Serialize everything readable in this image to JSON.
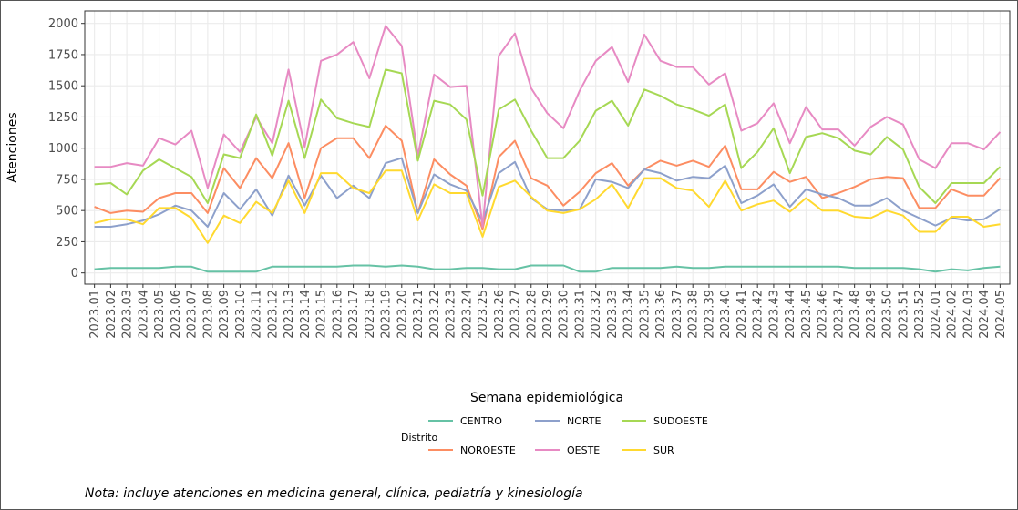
{
  "chart_data": {
    "type": "line",
    "x_label": "Semana epidemiológica",
    "y_label": "Atenciones",
    "legend_title": "Distrito",
    "note": "Nota: incluye atenciones en medicina general, clínica, pediatría y kinesiología",
    "categories": [
      "2023.01",
      "2023.02",
      "2023.03",
      "2023.04",
      "2023.05",
      "2023.06",
      "2023.07",
      "2023.08",
      "2023.09",
      "2023.10",
      "2023.11",
      "2023.12",
      "2023.13",
      "2023.14",
      "2023.15",
      "2023.16",
      "2023.17",
      "2023.18",
      "2023.19",
      "2023.20",
      "2023.21",
      "2023.22",
      "2023.23",
      "2023.24",
      "2023.25",
      "2023.26",
      "2023.27",
      "2023.28",
      "2023.29",
      "2023.30",
      "2023.31",
      "2023.32",
      "2023.33",
      "2023.34",
      "2023.35",
      "2023.36",
      "2023.37",
      "2023.38",
      "2023.39",
      "2023.40",
      "2023.41",
      "2023.42",
      "2023.43",
      "2023.44",
      "2023.45",
      "2023.46",
      "2023.47",
      "2023.48",
      "2023.49",
      "2023.50",
      "2023.51",
      "2023.52",
      "2024.01",
      "2024.02",
      "2024.03",
      "2024.04",
      "2024.05"
    ],
    "ylim": [
      -90,
      2100
    ],
    "yticks": [
      0,
      250,
      500,
      750,
      1000,
      1250,
      1500,
      1750,
      2000
    ],
    "grid": true,
    "series": [
      {
        "name": "CENTRO",
        "color": "#66c2a5",
        "values": [
          30,
          40,
          40,
          40,
          40,
          50,
          50,
          10,
          10,
          10,
          10,
          50,
          50,
          50,
          50,
          50,
          60,
          60,
          50,
          60,
          50,
          30,
          30,
          40,
          40,
          30,
          30,
          60,
          60,
          60,
          10,
          10,
          40,
          40,
          40,
          40,
          50,
          40,
          40,
          50,
          50,
          50,
          50,
          50,
          50,
          50,
          50,
          40,
          40,
          40,
          40,
          30,
          10,
          30,
          20,
          40,
          50
        ]
      },
      {
        "name": "NOROESTE",
        "color": "#fc8d62",
        "values": [
          530,
          480,
          500,
          490,
          600,
          640,
          640,
          480,
          840,
          680,
          920,
          760,
          1040,
          600,
          1000,
          1080,
          1080,
          920,
          1180,
          1060,
          480,
          910,
          790,
          700,
          350,
          930,
          1060,
          760,
          700,
          540,
          650,
          800,
          880,
          700,
          830,
          900,
          860,
          900,
          850,
          1020,
          670,
          670,
          810,
          730,
          770,
          600,
          640,
          690,
          750,
          770,
          760,
          520,
          520,
          670,
          620,
          620,
          760
        ]
      },
      {
        "name": "NORTE",
        "color": "#8da0cb",
        "values": [
          370,
          370,
          390,
          420,
          470,
          540,
          500,
          370,
          640,
          510,
          670,
          460,
          780,
          540,
          780,
          600,
          700,
          600,
          880,
          920,
          480,
          790,
          710,
          660,
          410,
          800,
          890,
          600,
          510,
          500,
          510,
          750,
          730,
          680,
          830,
          800,
          740,
          770,
          760,
          860,
          560,
          620,
          710,
          530,
          670,
          630,
          600,
          540,
          540,
          600,
          500,
          440,
          380,
          440,
          420,
          430,
          510
        ]
      },
      {
        "name": "OESTE",
        "color": "#e78ac3",
        "values": [
          850,
          850,
          880,
          860,
          1080,
          1030,
          1140,
          680,
          1110,
          970,
          1250,
          1040,
          1630,
          1010,
          1700,
          1750,
          1850,
          1560,
          1980,
          1820,
          940,
          1590,
          1490,
          1500,
          370,
          1740,
          1920,
          1480,
          1280,
          1160,
          1460,
          1700,
          1810,
          1530,
          1910,
          1700,
          1650,
          1650,
          1510,
          1600,
          1140,
          1200,
          1360,
          1040,
          1330,
          1150,
          1150,
          1020,
          1170,
          1250,
          1190,
          910,
          840,
          1040,
          1040,
          990,
          1130
        ]
      },
      {
        "name": "SUDOESTE",
        "color": "#a6d854",
        "values": [
          710,
          720,
          630,
          820,
          910,
          840,
          770,
          560,
          950,
          920,
          1270,
          940,
          1380,
          920,
          1390,
          1240,
          1200,
          1170,
          1630,
          1600,
          900,
          1380,
          1350,
          1230,
          620,
          1310,
          1390,
          1140,
          920,
          920,
          1060,
          1300,
          1380,
          1180,
          1470,
          1420,
          1350,
          1310,
          1260,
          1350,
          840,
          970,
          1160,
          800,
          1090,
          1120,
          1080,
          980,
          950,
          1090,
          990,
          690,
          560,
          720,
          720,
          720,
          850
        ]
      },
      {
        "name": "SUR",
        "color": "#ffd92f",
        "values": [
          400,
          430,
          430,
          390,
          520,
          520,
          440,
          240,
          460,
          400,
          570,
          480,
          740,
          480,
          800,
          800,
          680,
          640,
          820,
          820,
          420,
          710,
          640,
          640,
          290,
          690,
          740,
          610,
          500,
          480,
          510,
          590,
          710,
          520,
          760,
          760,
          680,
          660,
          530,
          740,
          500,
          550,
          580,
          490,
          600,
          500,
          500,
          450,
          440,
          500,
          460,
          330,
          330,
          450,
          450,
          370,
          390
        ]
      }
    ]
  }
}
